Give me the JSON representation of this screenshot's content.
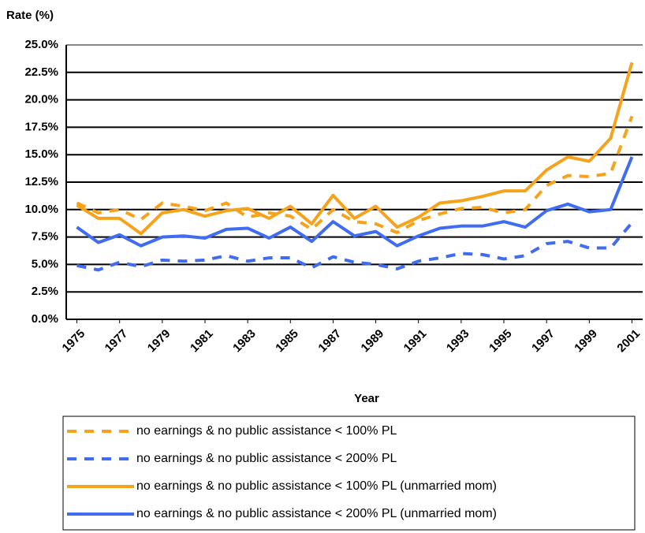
{
  "chart_data": {
    "type": "line",
    "y_label": "Rate (%)",
    "x_label": "Year",
    "x": [
      1975,
      1976,
      1977,
      1978,
      1979,
      1980,
      1981,
      1982,
      1983,
      1984,
      1985,
      1986,
      1987,
      1988,
      1989,
      1990,
      1991,
      1992,
      1993,
      1994,
      1995,
      1996,
      1997,
      1998,
      1999,
      2000,
      2001
    ],
    "xlim": [
      1974.5,
      2001.5
    ],
    "xticks": [
      1975,
      1977,
      1979,
      1981,
      1983,
      1985,
      1987,
      1989,
      1991,
      1993,
      1995,
      1997,
      1999,
      2001
    ],
    "ylim": [
      0,
      25
    ],
    "yticks": [
      {
        "value": 0,
        "label": "0.0%"
      },
      {
        "value": 2.5,
        "label": "2.5%"
      },
      {
        "value": 5,
        "label": "5.0%"
      },
      {
        "value": 7.5,
        "label": "7.5%"
      },
      {
        "value": 10,
        "label": "10.0%"
      },
      {
        "value": 12.5,
        "label": "12.5%"
      },
      {
        "value": 15,
        "label": "15.0%"
      },
      {
        "value": 17.5,
        "label": "17.5%"
      },
      {
        "value": 20,
        "label": "20.0%"
      },
      {
        "value": 22.5,
        "label": "22.5%"
      },
      {
        "value": 25,
        "label": "25.0%"
      }
    ],
    "grid": true,
    "series": [
      {
        "name": "no earnings & no public assistance < 100% PL",
        "color": "#f7a21b",
        "style": "dashed",
        "values": [
          10.6,
          9.7,
          10.0,
          9.1,
          10.6,
          10.3,
          9.9,
          10.6,
          9.3,
          9.7,
          9.4,
          8.2,
          10.0,
          8.9,
          8.7,
          7.9,
          9.0,
          9.6,
          10.1,
          10.2,
          9.7,
          10.0,
          12.2,
          13.1,
          13.0,
          13.3,
          18.5
        ]
      },
      {
        "name": "no earnings & no public assistance < 200% PL",
        "color": "#3f6cf0",
        "style": "dashed",
        "values": [
          4.9,
          4.5,
          5.2,
          4.8,
          5.4,
          5.3,
          5.4,
          5.8,
          5.3,
          5.6,
          5.6,
          4.7,
          5.7,
          5.2,
          5.0,
          4.6,
          5.3,
          5.6,
          6.0,
          5.9,
          5.5,
          5.8,
          6.9,
          7.1,
          6.5,
          6.5,
          8.8
        ]
      },
      {
        "name": "no earnings & no public assistance < 100% PL (unmarried mom)",
        "color": "#f7a21b",
        "style": "solid",
        "values": [
          10.4,
          9.2,
          9.2,
          7.8,
          9.7,
          10.0,
          9.4,
          9.9,
          10.1,
          9.2,
          10.3,
          8.7,
          11.3,
          9.2,
          10.3,
          8.4,
          9.3,
          10.6,
          10.8,
          11.2,
          11.7,
          11.7,
          13.6,
          14.8,
          14.4,
          16.5,
          23.4
        ]
      },
      {
        "name": "no earnings & no public assistance < 200% PL (unmarried mom)",
        "color": "#3f6cf0",
        "style": "solid",
        "values": [
          8.4,
          7.0,
          7.7,
          6.7,
          7.5,
          7.6,
          7.4,
          8.2,
          8.3,
          7.4,
          8.4,
          7.1,
          8.9,
          7.6,
          8.0,
          6.7,
          7.6,
          8.3,
          8.5,
          8.5,
          8.9,
          8.4,
          9.9,
          10.5,
          9.8,
          10.0,
          14.8
        ]
      }
    ]
  }
}
